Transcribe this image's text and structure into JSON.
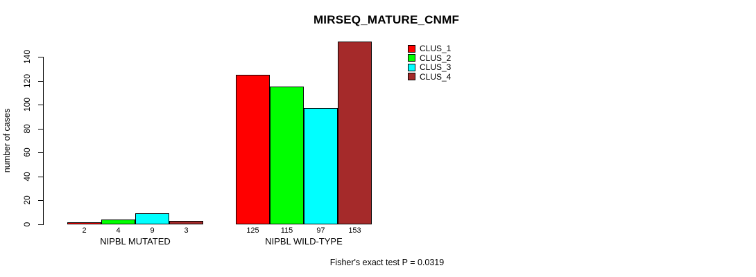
{
  "chart_data": {
    "type": "bar",
    "title": "MIRSEQ_MATURE_CNMF",
    "ylabel": "number of cases",
    "xlabel": "",
    "categories": [
      "NIPBL MUTATED",
      "NIPBL WILD-TYPE"
    ],
    "series": [
      {
        "name": "CLUS_1",
        "color": "#FF0000",
        "values": [
          2,
          125
        ]
      },
      {
        "name": "CLUS_2",
        "color": "#00FF00",
        "values": [
          4,
          115
        ]
      },
      {
        "name": "CLUS_3",
        "color": "#00FFFF",
        "values": [
          9,
          97
        ]
      },
      {
        "name": "CLUS_4",
        "color": "#A52A2A",
        "values": [
          3,
          153
        ]
      }
    ],
    "bar_value_labels": [
      [
        2,
        4,
        9,
        3
      ],
      [
        125,
        115,
        97,
        153
      ]
    ],
    "ylim": [
      0,
      140
    ],
    "yticks": [
      0,
      20,
      40,
      60,
      80,
      100,
      120,
      140
    ],
    "grid": false,
    "legend_position": "top-right",
    "legend_entries": [
      "CLUS_1",
      "CLUS_2",
      "CLUS_3",
      "CLUS_4"
    ],
    "annotation": "Fisher's exact test P = 0.0319",
    "axis_color": "#000000",
    "background_color": "#FFFFFF"
  }
}
